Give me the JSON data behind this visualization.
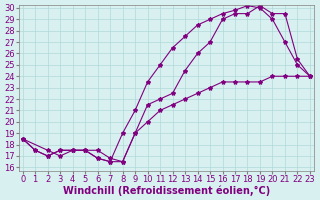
{
  "xlabel": "Windchill (Refroidissement éolien,°C)",
  "ylabel": "",
  "xlim": [
    0,
    23
  ],
  "ylim": [
    16,
    30
  ],
  "xticks": [
    0,
    1,
    2,
    3,
    4,
    5,
    6,
    7,
    8,
    9,
    10,
    11,
    12,
    13,
    14,
    15,
    16,
    17,
    18,
    19,
    20,
    21,
    22,
    23
  ],
  "yticks": [
    16,
    17,
    18,
    19,
    20,
    21,
    22,
    23,
    24,
    25,
    26,
    27,
    28,
    29,
    30
  ],
  "line1_x": [
    0,
    1,
    2,
    3,
    4,
    5,
    6,
    7,
    8,
    9,
    10,
    11,
    12,
    13,
    14,
    15,
    16,
    17,
    18,
    19,
    20,
    21,
    22,
    23
  ],
  "line1_y": [
    18.5,
    17.5,
    17.0,
    17.5,
    17.5,
    17.5,
    16.8,
    16.5,
    16.5,
    19.0,
    21.5,
    22.0,
    22.5,
    24.5,
    26.0,
    27.0,
    29.0,
    29.5,
    29.5,
    30.2,
    29.5,
    29.5,
    25.5,
    24.0
  ],
  "line2_x": [
    0,
    1,
    2,
    3,
    4,
    5,
    6,
    7,
    8,
    9,
    10,
    11,
    12,
    13,
    14,
    15,
    16,
    17,
    18,
    19,
    20,
    21,
    22,
    23
  ],
  "line2_y": [
    18.5,
    17.5,
    17.0,
    17.5,
    17.5,
    17.5,
    16.8,
    16.5,
    19.0,
    21.0,
    23.5,
    25.0,
    26.5,
    27.5,
    28.5,
    29.0,
    29.5,
    29.8,
    30.2,
    30.0,
    29.0,
    27.0,
    25.0,
    24.0
  ],
  "line3_x": [
    0,
    2,
    3,
    4,
    5,
    6,
    7,
    8,
    9,
    10,
    11,
    12,
    13,
    14,
    15,
    16,
    17,
    18,
    19,
    20,
    21,
    22,
    23
  ],
  "line3_y": [
    18.5,
    17.5,
    17.0,
    17.5,
    17.5,
    17.5,
    16.8,
    16.5,
    19.0,
    20.0,
    21.0,
    21.5,
    22.0,
    22.5,
    23.0,
    23.5,
    23.5,
    23.5,
    23.5,
    24.0,
    24.0,
    24.0,
    24.0
  ],
  "line_color": "#800080",
  "bg_color": "#d8f0f0",
  "grid_color": "#b0d8d8",
  "tick_fontsize": 6,
  "label_fontsize": 7
}
